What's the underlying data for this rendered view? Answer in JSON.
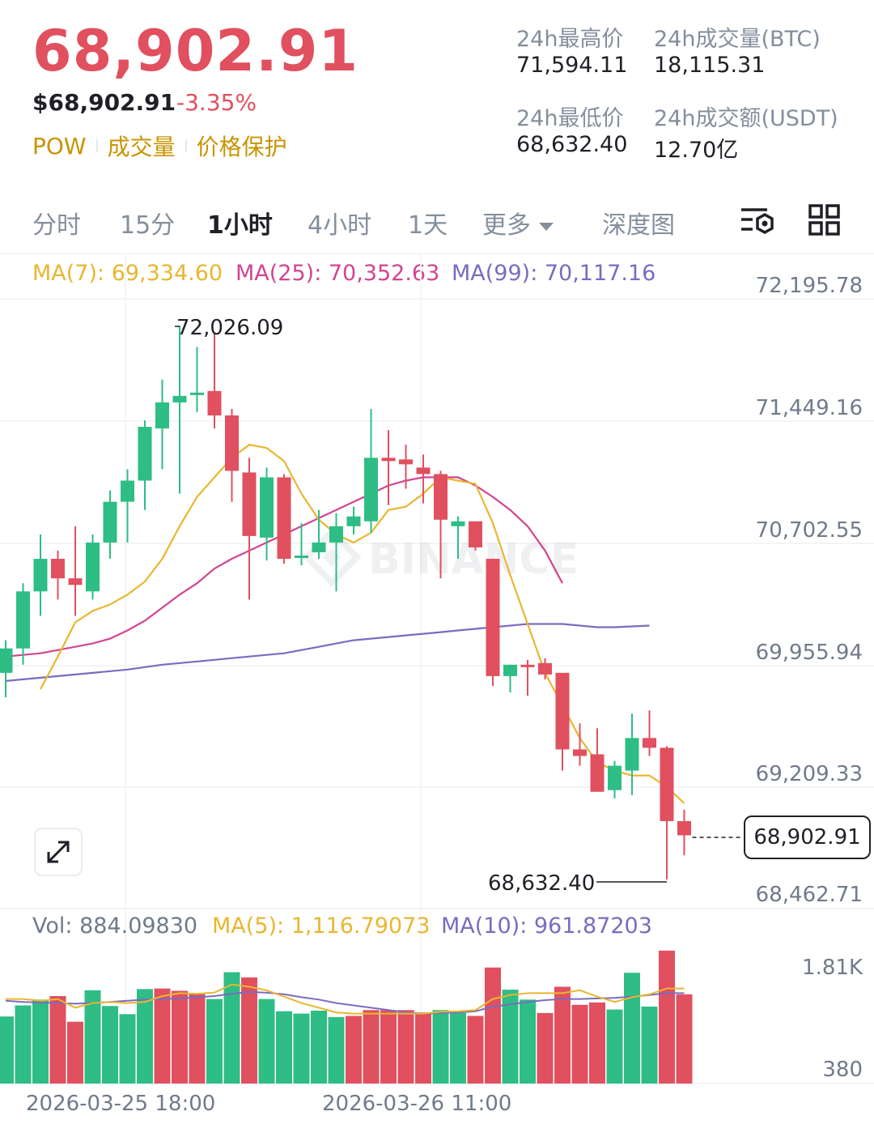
{
  "header": {
    "price": "68,902.91",
    "usd_price": "$68,902.91",
    "change": "-3.35%",
    "tags": [
      "POW",
      "成交量",
      "价格保护"
    ],
    "stats": [
      {
        "label": "24h最高价",
        "value": "71,594.11"
      },
      {
        "label": "24h成交量(BTC)",
        "value": "18,115.31"
      },
      {
        "label": "24h最低价",
        "value": "68,632.40"
      },
      {
        "label": "24h成交额(USDT)",
        "value": "12.70亿"
      }
    ]
  },
  "tabs": {
    "items": [
      "分时",
      "15分",
      "1小时",
      "4小时",
      "1天",
      "更多",
      "深度图"
    ],
    "active": "1小时"
  },
  "icons": {
    "settings": "chart-settings-icon",
    "layout": "grid-layout-icon",
    "expand": "expand-arrows-icon"
  },
  "colors": {
    "up": "#2ebd85",
    "down": "#e0505e",
    "ma7": "#e8b730",
    "ma25": "#d1458f",
    "ma99": "#7b6bbf",
    "accent": "#c99400"
  },
  "chart_data": [
    {
      "type": "candlestick",
      "indicators": [
        {
          "name": "MA(7)",
          "label": "MA(7): 69,334.60",
          "color": "#e8b730"
        },
        {
          "name": "MA(25)",
          "label": "MA(25): 70,352.63",
          "color": "#d1458f"
        },
        {
          "name": "MA(99)",
          "label": "MA(99): 70,117.16",
          "color": "#7b6bbf"
        }
      ],
      "y_ticks": [
        "72,195.78",
        "71,449.16",
        "70,702.55",
        "69,955.94",
        "69,209.33",
        "68,462.71"
      ],
      "ylim": [
        68462.71,
        72195.78
      ],
      "current_price": "68,902.91",
      "high_marker": "72,026.09",
      "low_marker": "68,632.40",
      "x_ticks": [
        "2026-03-25 18:00",
        "2026-03-26 11:00"
      ],
      "candles": [
        [
          69900,
          70100,
          69750,
          70050
        ],
        [
          70050,
          70450,
          69950,
          70400
        ],
        [
          70400,
          70750,
          70250,
          70600
        ],
        [
          70600,
          70650,
          70350,
          70480
        ],
        [
          70480,
          70800,
          70250,
          70440
        ],
        [
          70400,
          70750,
          70350,
          70700
        ],
        [
          70700,
          71020,
          70600,
          70950
        ],
        [
          70950,
          71150,
          70700,
          71080
        ],
        [
          71080,
          71450,
          70900,
          71410
        ],
        [
          71400,
          71700,
          71150,
          71560
        ],
        [
          71560,
          72026.09,
          71000,
          71600
        ],
        [
          71620,
          71900,
          71500,
          71620
        ],
        [
          71630,
          71980,
          71400,
          71480
        ],
        [
          71480,
          71520,
          70950,
          71140
        ],
        [
          71130,
          71220,
          70350,
          70740
        ],
        [
          70730,
          71160,
          70590,
          71100
        ],
        [
          71100,
          71120,
          70570,
          70600
        ],
        [
          70620,
          70820,
          70560,
          70620
        ],
        [
          70640,
          70900,
          70600,
          70700
        ],
        [
          70700,
          70880,
          70400,
          70800
        ],
        [
          70800,
          70920,
          70750,
          70860
        ],
        [
          70830,
          71520,
          70760,
          71220
        ],
        [
          71220,
          71390,
          70930,
          71200
        ],
        [
          71210,
          71300,
          71030,
          71180
        ],
        [
          71160,
          71240,
          70940,
          71120
        ],
        [
          71120,
          71140,
          70480,
          70840
        ],
        [
          70800,
          70860,
          70600,
          70830
        ],
        [
          70830,
          70830,
          70650,
          70670
        ],
        [
          70600,
          70600,
          69820,
          69880
        ],
        [
          69880,
          69950,
          69780,
          69950
        ],
        [
          69950,
          69980,
          69760,
          69940
        ],
        [
          69960,
          69990,
          69860,
          69890
        ],
        [
          69900,
          69900,
          69300,
          69430
        ],
        [
          69430,
          69590,
          69330,
          69390
        ],
        [
          69400,
          69560,
          69180,
          69170
        ],
        [
          69180,
          69360,
          69130,
          69330
        ],
        [
          69300,
          69650,
          69150,
          69500
        ],
        [
          69500,
          69670,
          69390,
          69440
        ],
        [
          69440,
          69450,
          68632.4,
          68990
        ],
        [
          68990,
          69060,
          68780,
          68902.91
        ]
      ],
      "ma7": [
        69800,
        70000,
        70210,
        70280,
        70320,
        70380,
        70460,
        70600,
        70800,
        70980,
        71100,
        71220,
        71300,
        71280,
        71200,
        71000,
        70840,
        70750,
        70700,
        70760,
        70900,
        70920,
        71000,
        71100,
        71080,
        71060,
        70820,
        70500,
        70200,
        69900,
        69700,
        69500,
        69350,
        69300,
        69270,
        69270,
        69200,
        69100
      ],
      "ma25": [
        70000,
        70010,
        70020,
        70040,
        70060,
        70080,
        70110,
        70160,
        70220,
        70300,
        70380,
        70450,
        70540,
        70600,
        70650,
        70700,
        70750,
        70800,
        70850,
        70900,
        70950,
        71000,
        71050,
        71080,
        71100,
        71100,
        71100,
        71050,
        70980,
        70900,
        70800,
        70650,
        70450
      ],
      "ma99": [
        69850,
        69860,
        69870,
        69880,
        69890,
        69900,
        69910,
        69920,
        69935,
        69950,
        69960,
        69970,
        69980,
        69990,
        70000,
        70010,
        70020,
        70040,
        70060,
        70080,
        70100,
        70110,
        70120,
        70130,
        70140,
        70150,
        70160,
        70170,
        70180,
        70190,
        70200,
        70200,
        70200,
        70190,
        70180,
        70180,
        70185,
        70190
      ]
    },
    {
      "type": "bar",
      "indicators": [
        {
          "name": "Vol",
          "label": "Vol: 884.09830",
          "color": "#707a8a"
        },
        {
          "name": "MA(5)",
          "label": "MA(5): 1,116.79073",
          "color": "#e8b730"
        },
        {
          "name": "MA(10)",
          "label": "MA(10): 961.87203",
          "color": "#7b6bbf"
        }
      ],
      "y_ticks": [
        "1.81K",
        "380"
      ],
      "values": [
        1.15,
        1.34,
        1.44,
        1.5,
        1.06,
        1.6,
        1.33,
        1.19,
        1.62,
        1.63,
        1.59,
        1.54,
        1.45,
        1.91,
        1.82,
        1.45,
        1.24,
        1.2,
        1.25,
        1.14,
        1.16,
        1.26,
        1.26,
        1.26,
        1.22,
        1.26,
        1.21,
        1.16,
        1.99,
        1.61,
        1.44,
        1.21,
        1.66,
        1.35,
        1.39,
        1.27,
        1.9,
        1.32,
        2.28,
        1.53
      ],
      "up": [
        1,
        1,
        1,
        0,
        0,
        1,
        1,
        1,
        1,
        0,
        0,
        0,
        1,
        1,
        0,
        1,
        1,
        1,
        1,
        1,
        0,
        0,
        0,
        0,
        0,
        1,
        1,
        0,
        0,
        1,
        1,
        0,
        0,
        0,
        0,
        1,
        1,
        1,
        0,
        0
      ],
      "ma5": [
        1.45,
        1.45,
        1.42,
        1.45,
        1.3,
        1.38,
        1.4,
        1.38,
        1.4,
        1.5,
        1.55,
        1.54,
        1.56,
        1.7,
        1.66,
        1.6,
        1.49,
        1.38,
        1.3,
        1.22,
        1.2,
        1.2,
        1.2,
        1.2,
        1.2,
        1.23,
        1.24,
        1.26,
        1.45,
        1.52,
        1.55,
        1.55,
        1.55,
        1.6,
        1.49,
        1.4,
        1.48,
        1.53,
        1.63,
        1.63
      ],
      "ma10": [
        1.42,
        1.4,
        1.39,
        1.38,
        1.37,
        1.38,
        1.4,
        1.42,
        1.44,
        1.45,
        1.46,
        1.48,
        1.5,
        1.54,
        1.57,
        1.56,
        1.53,
        1.48,
        1.44,
        1.38,
        1.34,
        1.3,
        1.26,
        1.22,
        1.2,
        1.21,
        1.22,
        1.24,
        1.32,
        1.36,
        1.4,
        1.43,
        1.45,
        1.45,
        1.46,
        1.47,
        1.49,
        1.52,
        1.55,
        1.55
      ]
    }
  ]
}
